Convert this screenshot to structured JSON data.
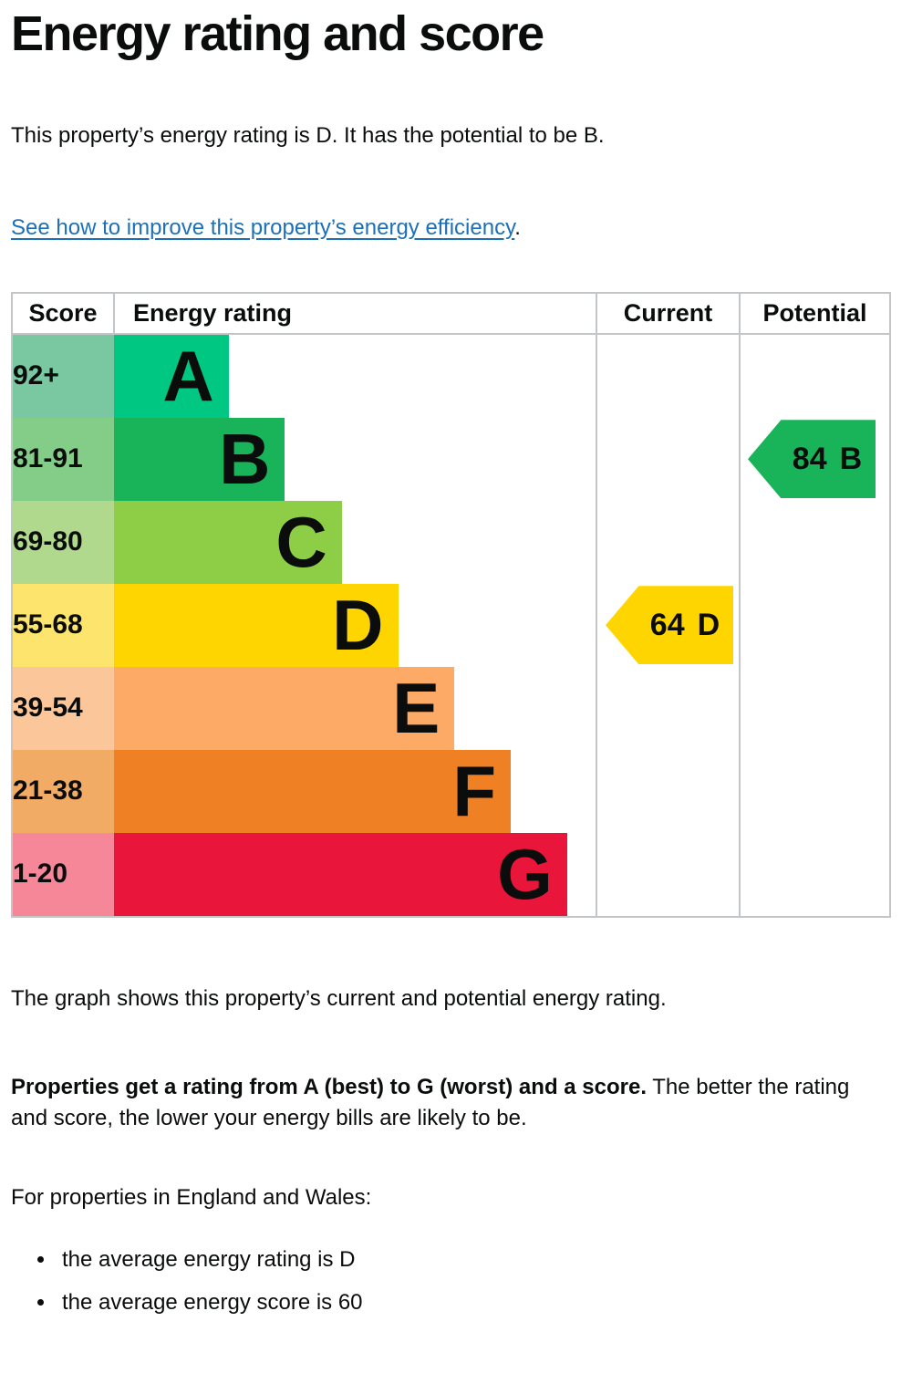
{
  "page": {
    "title": "Energy rating and score",
    "intro": "This property’s energy rating is D. It has the potential to be B.",
    "link_text": "See how to improve this property’s energy efficiency",
    "link_suffix": ".",
    "graph_caption": "The graph shows this property’s current and potential energy rating.",
    "explain_bold": "Properties get a rating from A (best) to G (worst) and a score.",
    "explain_rest": " The better the rating and score, the lower your energy bills are likely to be.",
    "region_heading": "For properties in England and Wales:",
    "bullets": [
      "the average energy rating is D",
      "the average energy score is 60"
    ]
  },
  "colors": {
    "text": "#0b0c0c",
    "link": "#1d70b8",
    "table_border": "#c3c6c8"
  },
  "chart_data": {
    "type": "bar",
    "title": "Energy rating and score",
    "description": "EPC energy efficiency rating graph with horizontal band bars A to G and current/potential rating arrows",
    "columns": [
      "Score",
      "Energy rating",
      "Current",
      "Potential"
    ],
    "bands": [
      {
        "range": "92+",
        "letter": "A",
        "color": "#00c781",
        "score_color": "#79c8a2",
        "width_pct": 23.8
      },
      {
        "range": "81-91",
        "letter": "B",
        "color": "#19b459",
        "score_color": "#83cd89",
        "width_pct": 35.5
      },
      {
        "range": "69-80",
        "letter": "C",
        "color": "#8dce46",
        "score_color": "#b0d98e",
        "width_pct": 47.3
      },
      {
        "range": "55-68",
        "letter": "D",
        "color": "#ffd500",
        "score_color": "#fde46c",
        "width_pct": 59.0
      },
      {
        "range": "39-54",
        "letter": "E",
        "color": "#fcaa65",
        "score_color": "#fbc79a",
        "width_pct": 70.7
      },
      {
        "range": "21-38",
        "letter": "F",
        "color": "#ef8023",
        "score_color": "#f1ab64",
        "width_pct": 82.4
      },
      {
        "range": "1-20",
        "letter": "G",
        "color": "#e9153b",
        "score_color": "#f58799",
        "width_pct": 94.1
      }
    ],
    "current": {
      "score": 64,
      "letter": "D",
      "color": "#ffd500",
      "band_row": 3
    },
    "potential": {
      "score": 84,
      "letter": "B",
      "color": "#19b459",
      "band_row": 1
    }
  }
}
